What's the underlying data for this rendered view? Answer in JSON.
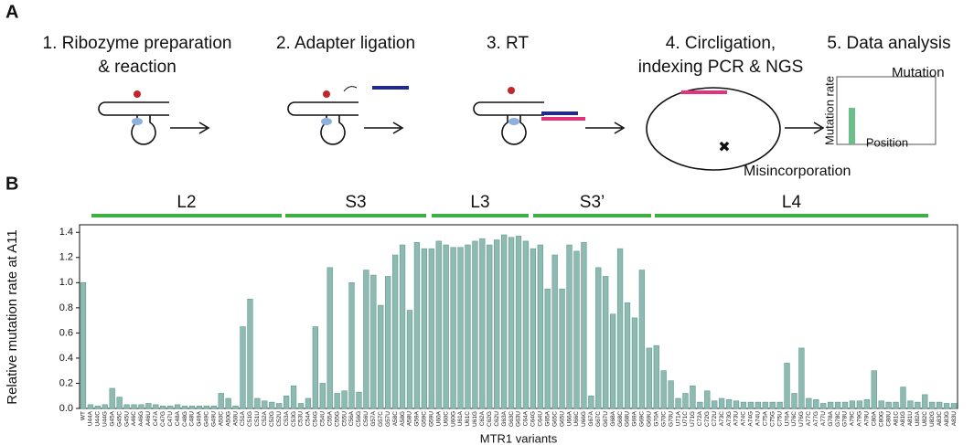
{
  "panel_a": {
    "label": "A",
    "steps": [
      [
        "1. Ribozyme preparation",
        "& reaction"
      ],
      [
        "2. Adapter ligation"
      ],
      [
        "3. RT"
      ],
      [
        "4. Circligation,",
        "indexing PCR & NGS"
      ],
      [
        "5. Data analysis"
      ]
    ],
    "inset_y_label": "Mutation rate",
    "inset_mutation": "Mutation",
    "inset_x_label": "Position",
    "misincorporation": "Misincorporation"
  },
  "chart_data": {
    "type": "bar",
    "panel_label": "B",
    "regions": [
      "L2",
      "S3",
      "L3",
      "S3’",
      "L4"
    ],
    "y_label": "Relative mutation rate at A11",
    "x_label": "MTR1 variants",
    "color": "#8fbab1",
    "edge_color": "#5e9c93",
    "categories": [
      "WT",
      "U44A",
      "U44C",
      "U44G",
      "G45A",
      "G45C",
      "G45U",
      "A46C",
      "A46G",
      "A46U",
      "C47A",
      "C47G",
      "C47U",
      "C48A",
      "C48G",
      "C48U",
      "G49A",
      "G49C",
      "G49U",
      "A50C",
      "A50G",
      "A50U",
      "C51A",
      "C51G",
      "C51U",
      "C52A",
      "C52G",
      "C52U",
      "C53A",
      "C53G",
      "C53U",
      "C54A",
      "C54G",
      "C54U",
      "C55A",
      "C55G",
      "C55U",
      "C56A",
      "C56G",
      "C56U",
      "G57A",
      "G57C",
      "G57U",
      "A58C",
      "A58G",
      "A58U",
      "G59A",
      "G59C",
      "G59U",
      "U60A",
      "U60C",
      "U60G",
      "U61A",
      "U61C",
      "U61G",
      "C62A",
      "C62G",
      "C62U",
      "G63A",
      "G63C",
      "G63U",
      "C64A",
      "C64G",
      "C64U",
      "G65A",
      "G65C",
      "G65U",
      "U66A",
      "U66C",
      "U66G",
      "G67A",
      "G67C",
      "G67U",
      "G68A",
      "G68C",
      "G68U",
      "G69A",
      "G69C",
      "G69U",
      "G70A",
      "G70C",
      "G70U",
      "U71A",
      "U71C",
      "U71G",
      "C72A",
      "C72G",
      "C72U",
      "A73C",
      "A73G",
      "A73U",
      "A74C",
      "A74G",
      "A74U",
      "C75A",
      "C75G",
      "C75U",
      "U76A",
      "U76C",
      "U76G",
      "A77C",
      "A77G",
      "A77U",
      "G78A",
      "G78C",
      "G78U",
      "A79C",
      "A79G",
      "A79U",
      "C80A",
      "C80G",
      "C80U",
      "A81C",
      "A81G",
      "A81U",
      "U82A",
      "U82C",
      "U82G",
      "A83C",
      "A83G",
      "A83U"
    ],
    "values": [
      1.0,
      0.03,
      0.02,
      0.03,
      0.16,
      0.09,
      0.03,
      0.03,
      0.03,
      0.04,
      0.03,
      0.02,
      0.02,
      0.03,
      0.02,
      0.02,
      0.02,
      0.02,
      0.02,
      0.12,
      0.08,
      0.02,
      0.65,
      0.87,
      0.08,
      0.06,
      0.05,
      0.04,
      0.1,
      0.18,
      0.04,
      0.08,
      0.65,
      0.2,
      1.12,
      0.12,
      0.14,
      1.0,
      0.13,
      1.1,
      1.06,
      0.82,
      1.05,
      1.22,
      1.3,
      0.78,
      1.32,
      1.27,
      1.27,
      1.33,
      1.3,
      1.28,
      1.28,
      1.3,
      1.33,
      1.35,
      1.3,
      1.34,
      1.38,
      1.36,
      1.37,
      1.33,
      1.27,
      1.3,
      0.95,
      1.22,
      0.95,
      1.3,
      1.25,
      1.32,
      0.1,
      1.12,
      1.05,
      0.75,
      1.27,
      0.84,
      0.72,
      1.1,
      0.48,
      0.5,
      0.3,
      0.22,
      0.08,
      0.12,
      0.18,
      0.05,
      0.14,
      0.06,
      0.08,
      0.07,
      0.06,
      0.05,
      0.05,
      0.05,
      0.05,
      0.05,
      0.05,
      0.36,
      0.12,
      0.48,
      0.08,
      0.07,
      0.04,
      0.05,
      0.05,
      0.05,
      0.06,
      0.06,
      0.07,
      0.3,
      0.06,
      0.05,
      0.05,
      0.17,
      0.06,
      0.05,
      0.11,
      0.05,
      0.05,
      0.04,
      0.04
    ],
    "ylim": [
      0,
      1.46
    ],
    "yticks": [
      {
        "value": 0,
        "label": "0.0"
      },
      0.2,
      0.4,
      0.6,
      0.8,
      {
        "value": 1,
        "label": "1.0"
      },
      1.2,
      1.4
    ]
  }
}
